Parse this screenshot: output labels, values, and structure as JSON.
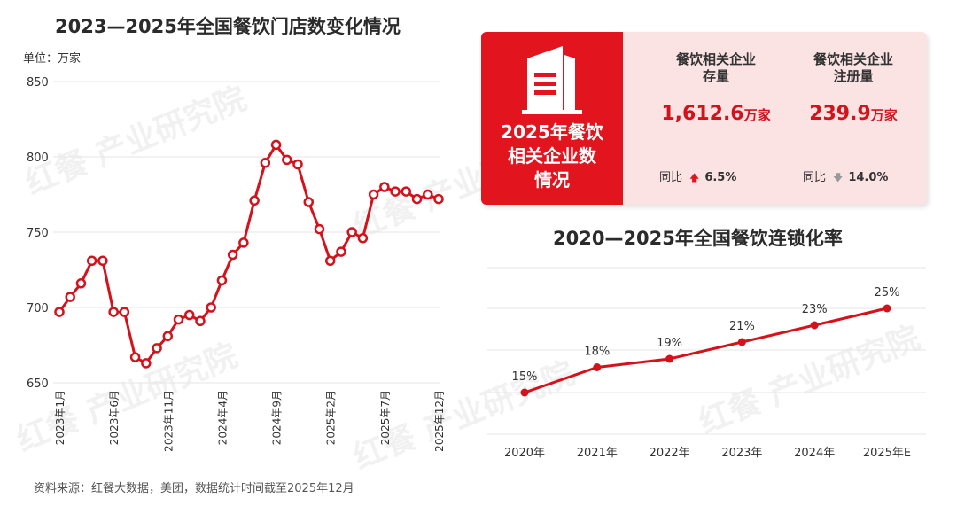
{
  "left": {
    "title": "2023—2025年全国餐饮门店数变化情况",
    "unit": "单位：万家"
  },
  "source": "资料来源：红餐大数据，美团，数据统计时间截至2025年12月",
  "watermark": "红餐 产业研究院",
  "stats": {
    "badge_line1": "2025年餐饮",
    "badge_line2": "相关企业数",
    "badge_line3": "情况",
    "col1": {
      "label_line1": "餐饮相关企业",
      "label_line2": "存量",
      "value": "1,612.6",
      "unit": "万家",
      "yoy_label": "同比",
      "yoy_arrow": "up",
      "yoy_value": "6.5%"
    },
    "col2": {
      "label_line1": "餐饮相关企业",
      "label_line2": "注册量",
      "value": "239.9",
      "unit": "万家",
      "yoy_label": "同比",
      "yoy_arrow": "down",
      "yoy_value": "14.0%"
    }
  },
  "right": {
    "title": "2020—2025年全国餐饮连锁化率"
  },
  "colors": {
    "accent": "#e2151f",
    "line": "#d4121c",
    "panel_bg": "#fbe3e4",
    "grid": "#e6e6e6"
  },
  "chart_data": [
    {
      "type": "line",
      "title": "2023—2025年全国餐饮门店数变化情况",
      "ylabel": "单位：万家",
      "ylim": [
        650,
        850
      ],
      "yticks": [
        650,
        700,
        750,
        800,
        850
      ],
      "xtick_labels": [
        "2023年1月",
        "2023年6月",
        "2023年11月",
        "2024年4月",
        "2024年9月",
        "2025年2月",
        "2025年7月",
        "2025年12月"
      ],
      "x": [
        "2023-01",
        "2023-02",
        "2023-03",
        "2023-04",
        "2023-05",
        "2023-06",
        "2023-07",
        "2023-08",
        "2023-09",
        "2023-10",
        "2023-11",
        "2023-12",
        "2024-01",
        "2024-02",
        "2024-03",
        "2024-04",
        "2024-05",
        "2024-06",
        "2024-07",
        "2024-08",
        "2024-09",
        "2024-10",
        "2024-11",
        "2024-12",
        "2025-01",
        "2025-02",
        "2025-03",
        "2025-04",
        "2025-05",
        "2025-06",
        "2025-07",
        "2025-08",
        "2025-09",
        "2025-10",
        "2025-11",
        "2025-12"
      ],
      "values": [
        697,
        707,
        716,
        731,
        731,
        697,
        697,
        667,
        663,
        673,
        681,
        692,
        695,
        691,
        700,
        718,
        735,
        743,
        771,
        796,
        808,
        798,
        795,
        770,
        752,
        731,
        737,
        750,
        746,
        775,
        780,
        777,
        777,
        772,
        775,
        772
      ],
      "grid": true
    },
    {
      "type": "line",
      "title": "2020—2025年全国餐饮连锁化率",
      "categories": [
        "2020年",
        "2021年",
        "2022年",
        "2023年",
        "2024年",
        "2025年E"
      ],
      "values": [
        15,
        18,
        19,
        21,
        23,
        25
      ],
      "data_labels": [
        "15%",
        "18%",
        "19%",
        "21%",
        "23%",
        "25%"
      ],
      "grid": true
    }
  ]
}
